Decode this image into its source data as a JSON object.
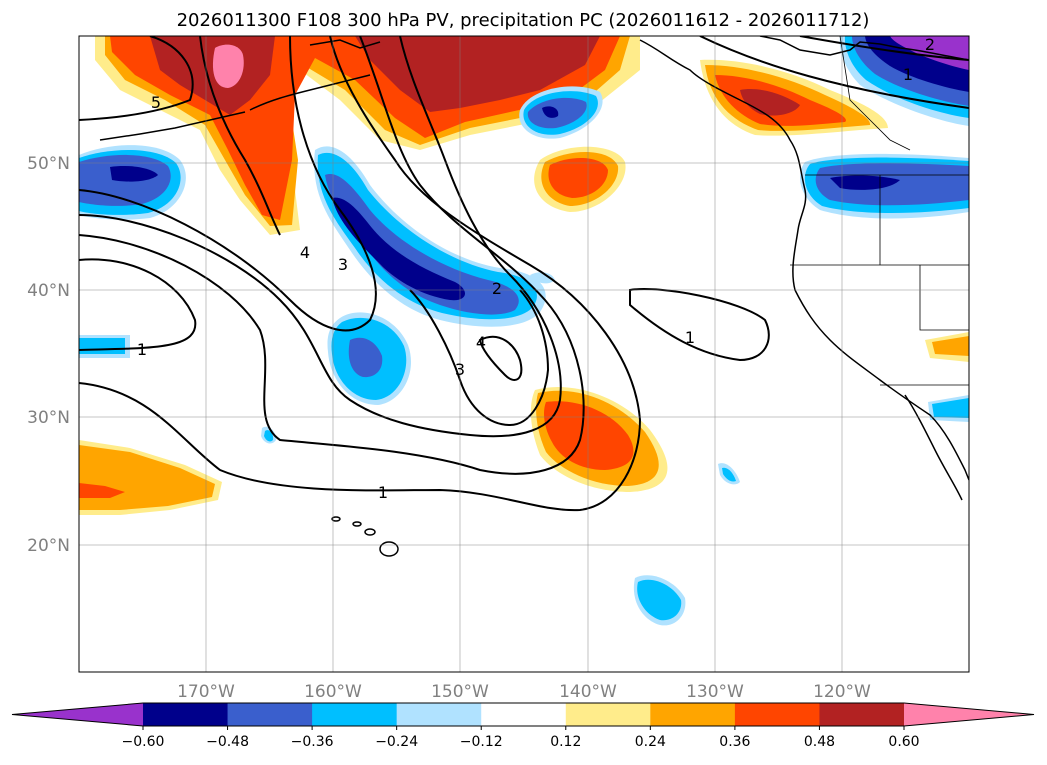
{
  "title": "2026011300 F108 300 hPa PV, precipitation PC (2026011612 - 2026011712)",
  "map": {
    "lon_range": [
      -180,
      -110
    ],
    "lat_range": [
      10,
      60
    ],
    "lat_labels": [
      "20°N",
      "30°N",
      "40°N",
      "50°N"
    ],
    "lon_labels": [
      "170°W",
      "160°W",
      "150°W",
      "140°W",
      "130°W",
      "120°W"
    ],
    "contour_labels": [
      "1",
      "1",
      "1",
      "2",
      "3",
      "4",
      "3",
      "4",
      "1",
      "2",
      "5"
    ]
  },
  "colorbar": {
    "ticks": [
      "−0.60",
      "−0.48",
      "−0.36",
      "−0.24",
      "−0.12",
      "0.12",
      "0.24",
      "0.36",
      "0.48",
      "0.60"
    ],
    "colors": [
      "#9932cc",
      "#00008b",
      "#3a5fcd",
      "#00bfff",
      "#b0e2ff",
      "#ffffff",
      "#ffec8b",
      "#ffa500",
      "#ff4500",
      "#b22222",
      "#ff82ab"
    ]
  },
  "colors": {
    "neg_strong": "#00008b",
    "neg_med": "#3a5fcd",
    "neg_light": "#00bfff",
    "neg_faint": "#b0e2ff",
    "pos_faint": "#ffec8b",
    "pos_light": "#ffa500",
    "pos_med": "#ff4500",
    "pos_strong": "#b22222",
    "pos_max": "#ff82ab",
    "neg_max": "#9932cc"
  }
}
